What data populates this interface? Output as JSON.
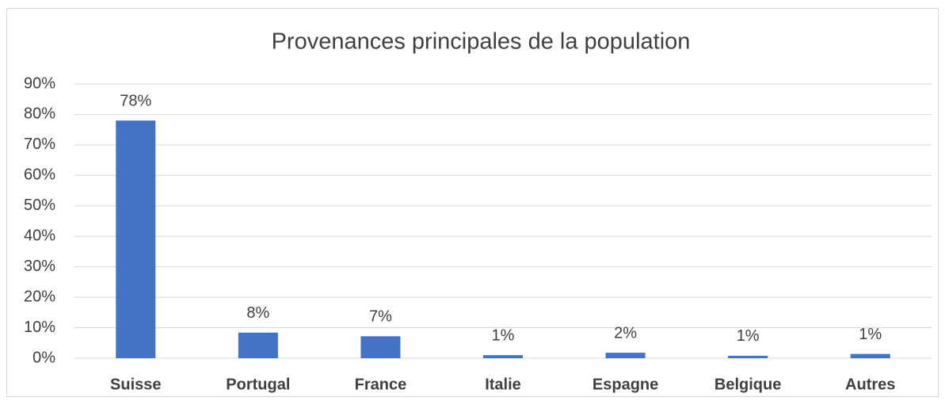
{
  "chart_data": {
    "type": "bar",
    "title": "Provenances principales de la population",
    "categories": [
      "Suisse",
      "Portugal",
      "France",
      "Italie",
      "Espagne",
      "Belgique",
      "Autres"
    ],
    "values": [
      78,
      8.4,
      7.2,
      1.0,
      1.8,
      0.8,
      1.4
    ],
    "value_labels": [
      "78%",
      "8%",
      "7%",
      "1%",
      "2%",
      "1%",
      "1%"
    ],
    "color": "#4472c4",
    "ylim": [
      0,
      90
    ],
    "yticks": [
      {
        "value": 0,
        "label": "0%"
      },
      {
        "value": 10,
        "label": "10%"
      },
      {
        "value": 20,
        "label": "20%"
      },
      {
        "value": 30,
        "label": "30%"
      },
      {
        "value": 40,
        "label": "40%"
      },
      {
        "value": 50,
        "label": "50%"
      },
      {
        "value": 60,
        "label": "60%"
      },
      {
        "value": 70,
        "label": "70%"
      },
      {
        "value": 80,
        "label": "80%"
      },
      {
        "value": 90,
        "label": "90%"
      }
    ],
    "grid": true
  }
}
